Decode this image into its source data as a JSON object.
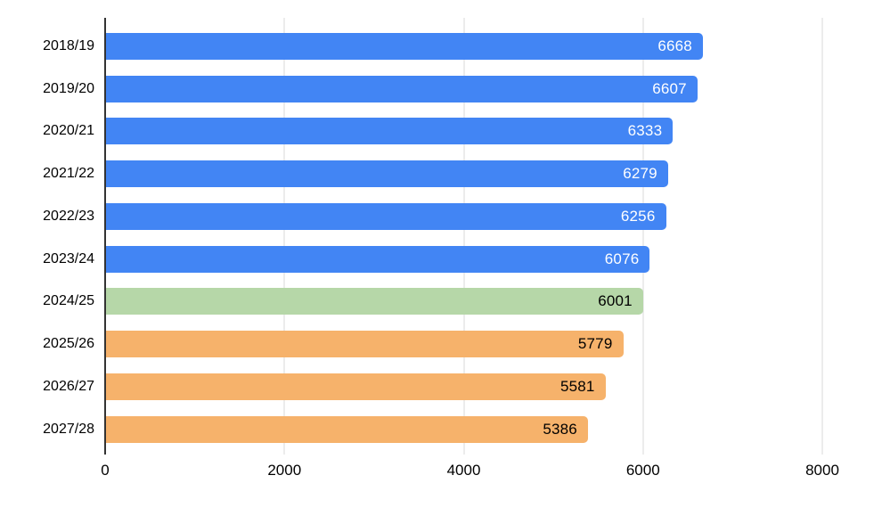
{
  "chart_data": {
    "type": "bar",
    "orientation": "horizontal",
    "title": "",
    "xlabel": "",
    "ylabel": "",
    "categories": [
      "2018/19",
      "2019/20",
      "2020/21",
      "2021/22",
      "2022/23",
      "2023/24",
      "2024/25",
      "2025/26",
      "2026/27",
      "2027/28"
    ],
    "values": [
      6668,
      6607,
      6333,
      6279,
      6256,
      6076,
      6001,
      5779,
      5581,
      5386
    ],
    "value_labels": [
      "6668",
      "6607",
      "6333",
      "6279",
      "6256",
      "6076",
      "6001",
      "5779",
      "5581",
      "5386"
    ],
    "bar_colors": [
      "#4285F4",
      "#4285F4",
      "#4285F4",
      "#4285F4",
      "#4285F4",
      "#4285F4",
      "#B6D7A8",
      "#F6B26B",
      "#F6B26B",
      "#F6B26B"
    ],
    "value_label_colors": [
      "#ffffff",
      "#ffffff",
      "#ffffff",
      "#ffffff",
      "#ffffff",
      "#ffffff",
      "#000000",
      "#000000",
      "#000000",
      "#000000"
    ],
    "xlim": [
      0,
      8000
    ],
    "x_ticks": [
      0,
      2000,
      4000,
      6000,
      8000
    ],
    "x_tick_labels": [
      "0",
      "2000",
      "4000",
      "6000",
      "8000"
    ],
    "grid": true,
    "legend": "none",
    "colors": {
      "series_blue": "#4285F4",
      "series_green": "#B6D7A8",
      "series_orange": "#F6B26B",
      "gridline": "#d9d9d9",
      "axis_line": "#333333",
      "background": "#ffffff",
      "text": "#000000"
    }
  }
}
